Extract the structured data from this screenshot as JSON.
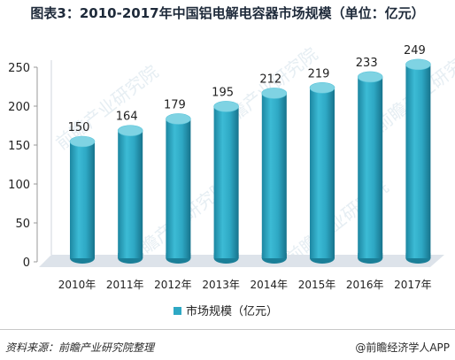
{
  "page": {
    "title": "图表3：2010-2017年中国铝电解电容器市场规模（单位：亿元）",
    "source": "资料来源：前瞻产业研究院整理",
    "brand": "@前瞻经济学人APP",
    "watermark": "前瞻产业研究院"
  },
  "colors": {
    "bar_front": "#2ea8c4",
    "bar_top": "#7fd3e3",
    "bar_shadow": "#1b7f98",
    "floor": "#dde3ea",
    "axis_text": "#222222"
  },
  "chart_data": {
    "type": "bar",
    "title": "图表3：2010-2017年中国铝电解电容器市场规模（单位：亿元）",
    "categories": [
      "2010年",
      "2011年",
      "2012年",
      "2013年",
      "2014年",
      "2015年",
      "2016年",
      "2017年"
    ],
    "series": [
      {
        "name": "市场规模（亿元）",
        "values": [
          150,
          164,
          179,
          195,
          212,
          219,
          233,
          249
        ]
      }
    ],
    "xlabel": "",
    "ylabel": "",
    "ylim": [
      0,
      250
    ],
    "yticks": [
      0,
      50,
      100,
      150,
      200,
      250
    ],
    "grid": false,
    "legend": "bottom",
    "data_labels": true,
    "style": "3d-cylinder"
  }
}
